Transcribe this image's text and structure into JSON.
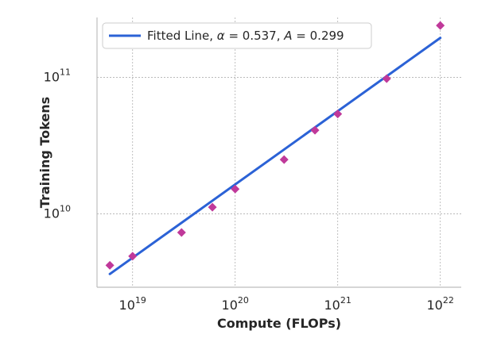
{
  "chart_data": {
    "type": "scatter",
    "xlabel": "Compute (FLOPs)",
    "ylabel": "Training Tokens",
    "xscale": "log",
    "yscale": "log",
    "xlim": [
      4.5e+18,
      1.6e+22
    ],
    "ylim": [
      2900000000.0,
      275000000000.0
    ],
    "x_ticks": [
      {
        "value": 1e+19,
        "base": "10",
        "exp": "19"
      },
      {
        "value": 1e+20,
        "base": "10",
        "exp": "20"
      },
      {
        "value": 1e+21,
        "base": "10",
        "exp": "21"
      },
      {
        "value": 1e+22,
        "base": "10",
        "exp": "22"
      }
    ],
    "y_ticks": [
      {
        "value": 10000000000.0,
        "base": "10",
        "exp": "10"
      },
      {
        "value": 100000000000.0,
        "base": "10",
        "exp": "11"
      }
    ],
    "grid": true,
    "legend_position": "top-left",
    "series": [
      {
        "kind": "points",
        "marker": "diamond",
        "color": "#c0399a",
        "x": [
          6e+18,
          1e+19,
          3e+19,
          6e+19,
          1e+20,
          3e+20,
          6e+20,
          1e+21,
          3e+21,
          1e+22
        ],
        "y": [
          4200000000.0,
          4900000000.0,
          7300000000.0,
          11200000000.0,
          15200000000.0,
          25000000000.0,
          41000000000.0,
          54000000000.0,
          98000000000.0,
          240000000000.0
        ]
      },
      {
        "kind": "fit",
        "color": "#2b62d6",
        "legend_prefix": "Fitted Line, ",
        "legend_alpha_sym": "α",
        "legend_mid": " = 0.537, ",
        "legend_A_sym": "A",
        "legend_suffix": " = 0.299",
        "alpha": 0.537,
        "A": 0.299,
        "x_range": [
          6e+18,
          1e+22
        ]
      }
    ]
  }
}
